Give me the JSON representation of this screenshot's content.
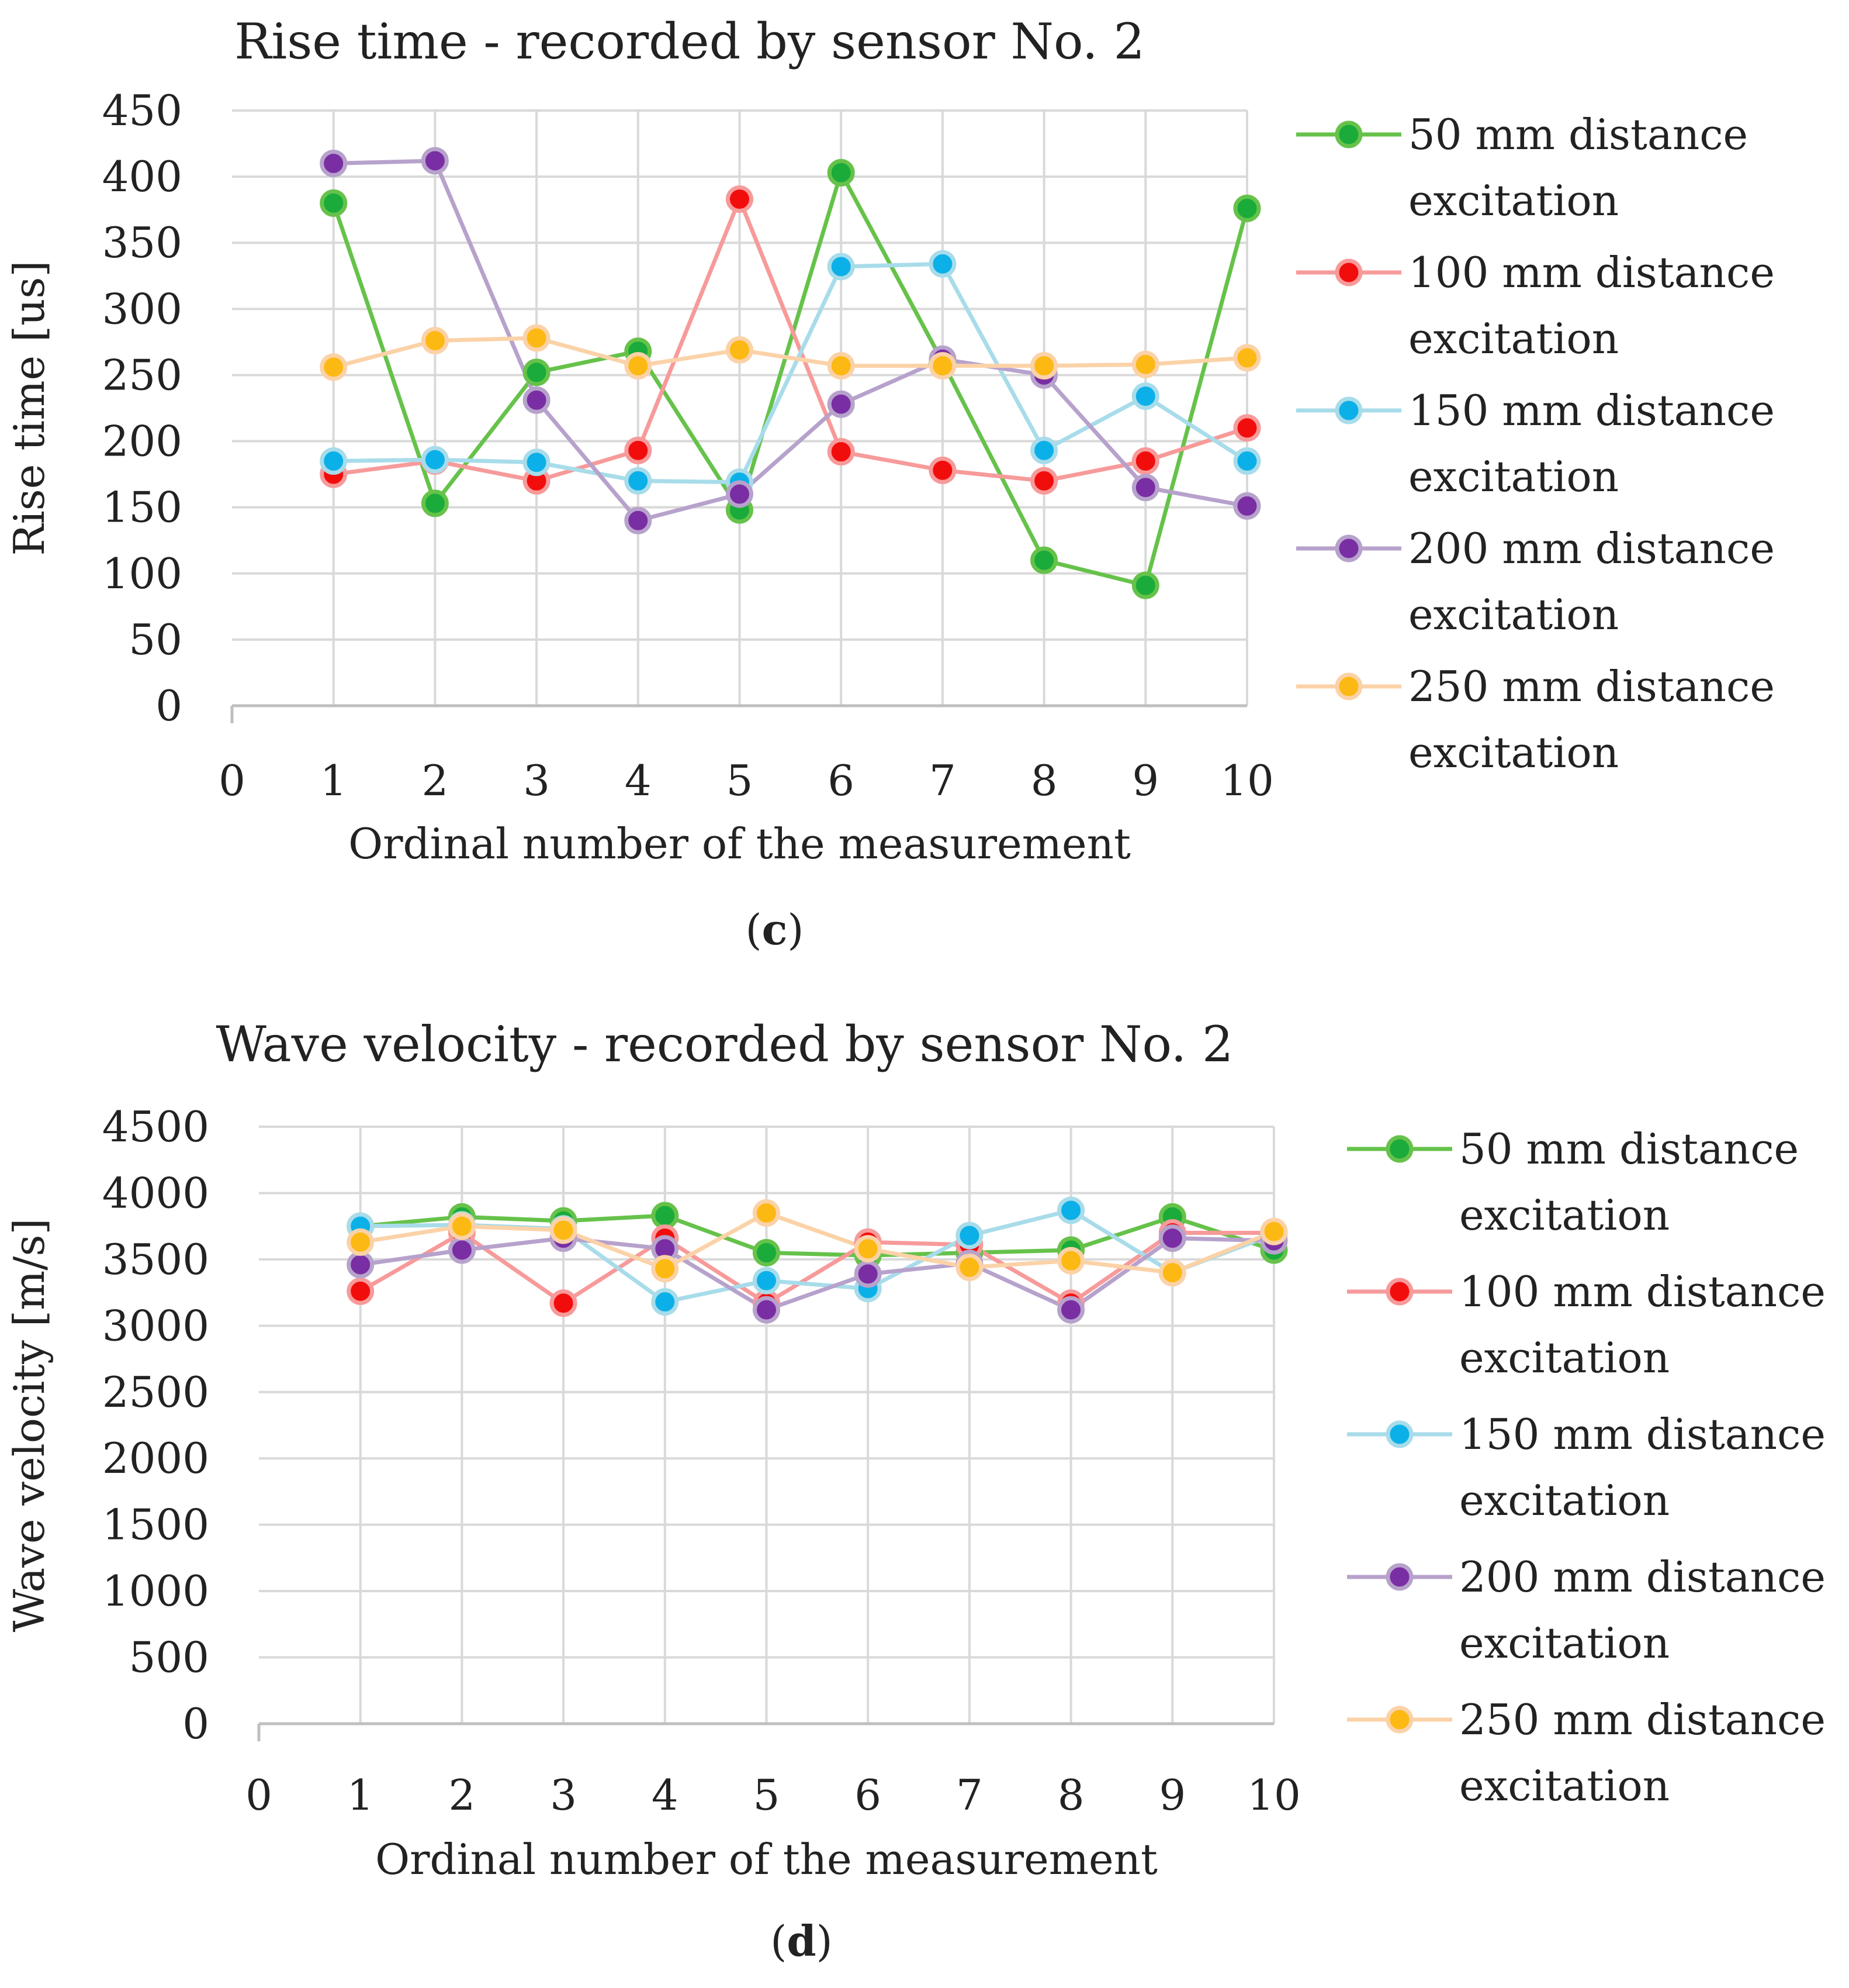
{
  "chart_data": [
    {
      "type": "line",
      "title": "Rise time - recorded by sensor No. 2",
      "xlabel": "Ordinal number of the measurement",
      "ylabel": "Rise time [us]",
      "xlim": [
        0,
        10
      ],
      "ylim": [
        0,
        450
      ],
      "x_ticks": [
        0,
        1,
        2,
        3,
        4,
        5,
        6,
        7,
        8,
        9,
        10
      ],
      "y_ticks": [
        0,
        50,
        100,
        150,
        200,
        250,
        300,
        350,
        400,
        450
      ],
      "grid": true,
      "legend_position": "right",
      "caption": "(c)",
      "x": [
        1,
        2,
        3,
        4,
        5,
        6,
        7,
        8,
        9,
        10
      ],
      "series": [
        {
          "name_line1": "50 mm distance",
          "name_line2": "excitation",
          "line_color": "#66C24A",
          "marker_color": "#1AAB3A",
          "values": [
            380,
            153,
            252,
            268,
            148,
            403,
            260,
            110,
            91,
            376
          ]
        },
        {
          "name_line1": "100 mm distance",
          "name_line2": "excitation",
          "line_color": "#F79A9A",
          "marker_color": "#F20D0D",
          "values": [
            175,
            185,
            170,
            193,
            383,
            192,
            178,
            170,
            185,
            210
          ]
        },
        {
          "name_line1": "150 mm distance",
          "name_line2": "excitation",
          "line_color": "#A8DCEA",
          "marker_color": "#0CB0E8",
          "values": [
            185,
            186,
            184,
            170,
            169,
            332,
            334,
            193,
            234,
            185
          ]
        },
        {
          "name_line1": "200 mm distance",
          "name_line2": "excitation",
          "line_color": "#B7A2CC",
          "marker_color": "#7A2EA3",
          "values": [
            410,
            412,
            231,
            140,
            160,
            228,
            262,
            250,
            165,
            151
          ]
        },
        {
          "name_line1": "250 mm distance",
          "name_line2": "excitation",
          "line_color": "#FBD2A8",
          "marker_color": "#FDB913",
          "values": [
            256,
            276,
            278,
            257,
            269,
            257,
            257,
            257,
            258,
            263
          ]
        }
      ]
    },
    {
      "type": "line",
      "title": "Wave velocity - recorded by sensor No. 2",
      "xlabel": "Ordinal number of the measurement",
      "ylabel": "Wave velocity [m/s]",
      "xlim": [
        0,
        10
      ],
      "ylim": [
        0,
        4500
      ],
      "x_ticks": [
        0,
        1,
        2,
        3,
        4,
        5,
        6,
        7,
        8,
        9,
        10
      ],
      "y_ticks": [
        0,
        500,
        1000,
        1500,
        2000,
        2500,
        3000,
        3500,
        4000,
        4500
      ],
      "grid": true,
      "legend_position": "right",
      "caption": "(d)",
      "x": [
        1,
        2,
        3,
        4,
        5,
        6,
        7,
        8,
        9,
        10
      ],
      "series": [
        {
          "name_line1": "50 mm distance",
          "name_line2": "excitation",
          "line_color": "#66C24A",
          "marker_color": "#1AAB3A",
          "values": [
            3750,
            3820,
            3790,
            3830,
            3550,
            3530,
            3550,
            3570,
            3820,
            3570
          ]
        },
        {
          "name_line1": "100 mm distance",
          "name_line2": "excitation",
          "line_color": "#F79A9A",
          "marker_color": "#F20D0D",
          "values": [
            3260,
            3700,
            3170,
            3660,
            3170,
            3630,
            3610,
            3170,
            3700,
            3700
          ]
        },
        {
          "name_line1": "150 mm distance",
          "name_line2": "excitation",
          "line_color": "#A8DCEA",
          "marker_color": "#0CB0E8",
          "values": [
            3750,
            3760,
            3730,
            3180,
            3340,
            3280,
            3680,
            3870,
            3400,
            3690
          ]
        },
        {
          "name_line1": "200 mm distance",
          "name_line2": "excitation",
          "line_color": "#B7A2CC",
          "marker_color": "#7A2EA3",
          "values": [
            3460,
            3570,
            3660,
            3580,
            3120,
            3390,
            3470,
            3120,
            3660,
            3640
          ]
        },
        {
          "name_line1": "250 mm distance",
          "name_line2": "excitation",
          "line_color": "#FBD2A8",
          "marker_color": "#FDB913",
          "values": [
            3630,
            3750,
            3720,
            3430,
            3850,
            3580,
            3440,
            3490,
            3400,
            3710
          ]
        }
      ]
    }
  ]
}
